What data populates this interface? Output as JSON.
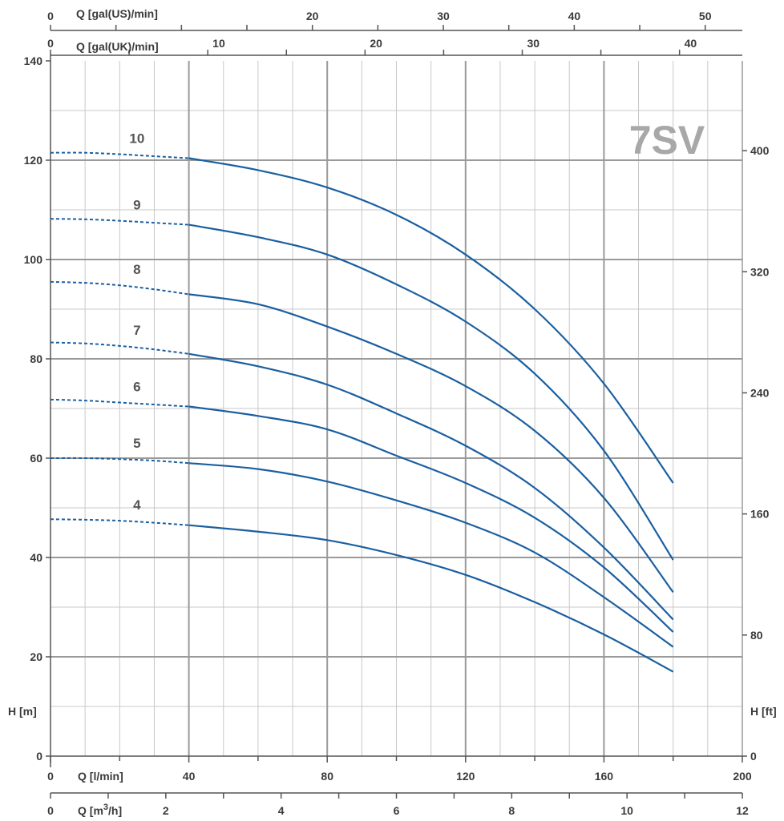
{
  "chart_data": {
    "type": "line",
    "title": "7SV",
    "xlabel": "Q [l/min]",
    "ylabel": "H [m]",
    "y2label": "H [ft]",
    "x_range": [
      0,
      200
    ],
    "ylim": [
      0,
      140
    ],
    "grid": true,
    "x_ticks": [
      "0",
      "40",
      "80",
      "120",
      "160",
      "200"
    ],
    "y_ticks": [
      "0",
      "20",
      "40",
      "60",
      "80",
      "100",
      "120",
      "140"
    ],
    "y2_ticks": [
      "0",
      "80",
      "160",
      "240",
      "320",
      "400"
    ],
    "secondary_axes": [
      {
        "label": "Q [m3/h]",
        "label_base": "Q [m",
        "label_sup": "3",
        "label_tail": "/h]",
        "ticks": [
          "0",
          "2",
          "4",
          "6",
          "8",
          "10",
          "12"
        ]
      },
      {
        "label": "Q [gal(UK)/min]",
        "ticks": [
          "0",
          "10",
          "20",
          "30",
          "40"
        ]
      },
      {
        "label": "Q [gal(US)/min]",
        "ticks": [
          "0",
          "20",
          "30",
          "40",
          "50"
        ]
      }
    ],
    "extrapolated_range": [
      0,
      40
    ],
    "series": [
      {
        "name": "10",
        "x": [
          0,
          10,
          20,
          30,
          40,
          60,
          80,
          100,
          120,
          140,
          160,
          180
        ],
        "y": [
          121.5,
          121.5,
          121.2,
          120.8,
          120.4,
          118.0,
          114.5,
          109.0,
          101.0,
          90.0,
          75.0,
          55.0
        ]
      },
      {
        "name": "9",
        "x": [
          0,
          10,
          20,
          30,
          40,
          60,
          80,
          100,
          120,
          140,
          160,
          180
        ],
        "y": [
          108.2,
          108.1,
          107.8,
          107.4,
          107.0,
          104.5,
          101.0,
          95.0,
          87.5,
          77.0,
          61.5,
          39.5
        ]
      },
      {
        "name": "8",
        "x": [
          0,
          10,
          20,
          30,
          40,
          60,
          80,
          100,
          120,
          140,
          160,
          180
        ],
        "y": [
          95.5,
          95.3,
          94.8,
          94.0,
          93.0,
          91.0,
          86.5,
          81.0,
          74.5,
          65.5,
          52.0,
          33.0
        ]
      },
      {
        "name": "7",
        "x": [
          0,
          10,
          20,
          30,
          40,
          60,
          80,
          100,
          120,
          140,
          160,
          180
        ],
        "y": [
          83.3,
          83.1,
          82.6,
          81.9,
          81.0,
          78.5,
          74.8,
          69.0,
          62.5,
          54.0,
          42.0,
          27.5
        ]
      },
      {
        "name": "6",
        "x": [
          0,
          10,
          20,
          30,
          40,
          60,
          80,
          100,
          120,
          140,
          160,
          180
        ],
        "y": [
          71.8,
          71.6,
          71.2,
          70.8,
          70.4,
          68.5,
          65.8,
          60.5,
          55.0,
          48.0,
          38.0,
          25.0
        ]
      },
      {
        "name": "5",
        "x": [
          0,
          10,
          20,
          30,
          40,
          60,
          80,
          100,
          120,
          140,
          160,
          180
        ],
        "y": [
          60.0,
          60.0,
          59.8,
          59.5,
          59.0,
          57.8,
          55.3,
          51.5,
          47.0,
          41.0,
          32.0,
          22.0
        ]
      },
      {
        "name": "4",
        "x": [
          0,
          10,
          20,
          30,
          40,
          60,
          80,
          100,
          120,
          140,
          160,
          180
        ],
        "y": [
          47.7,
          47.6,
          47.4,
          47.0,
          46.5,
          45.2,
          43.5,
          40.5,
          36.5,
          31.0,
          24.5,
          17.0
        ]
      }
    ]
  },
  "colors": {
    "curve": "#1a5fa0",
    "grid_major": "#9a9a9a",
    "grid_minor": "#c8c8c8",
    "axis": "#555555",
    "watermark": "#a8a8a8"
  }
}
